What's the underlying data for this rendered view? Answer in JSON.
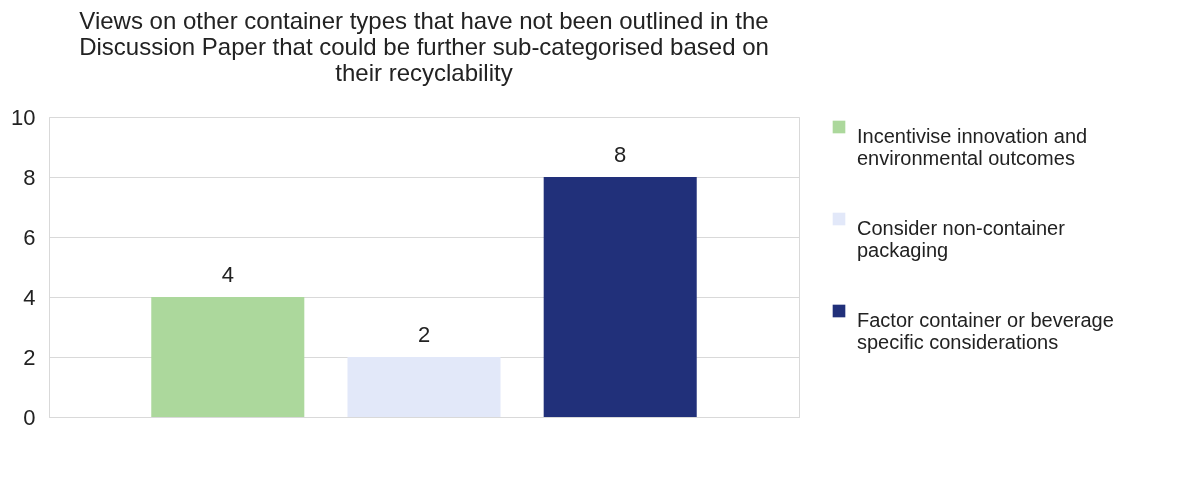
{
  "chart_data": {
    "type": "bar",
    "title": "Views on other container types that have not been outlined in the Discussion Paper that could be further sub-categorised based on their recyclability",
    "categories": [
      null
    ],
    "series": [
      {
        "name": "Incentivise innovation and environmental outcomes",
        "color": "#acd89c",
        "values": [
          4
        ]
      },
      {
        "name": "Consider non-container packaging",
        "color": "#e2e8f9",
        "values": [
          2
        ]
      },
      {
        "name": "Factor container or beverage specific considerations",
        "color": "#21307a",
        "values": [
          8
        ]
      }
    ],
    "ylim": [
      0,
      10
    ],
    "yticks": [
      0,
      2,
      4,
      6,
      8,
      10
    ],
    "grid": "y",
    "legend": "right",
    "data_labels": true,
    "tick_labels": "y"
  }
}
